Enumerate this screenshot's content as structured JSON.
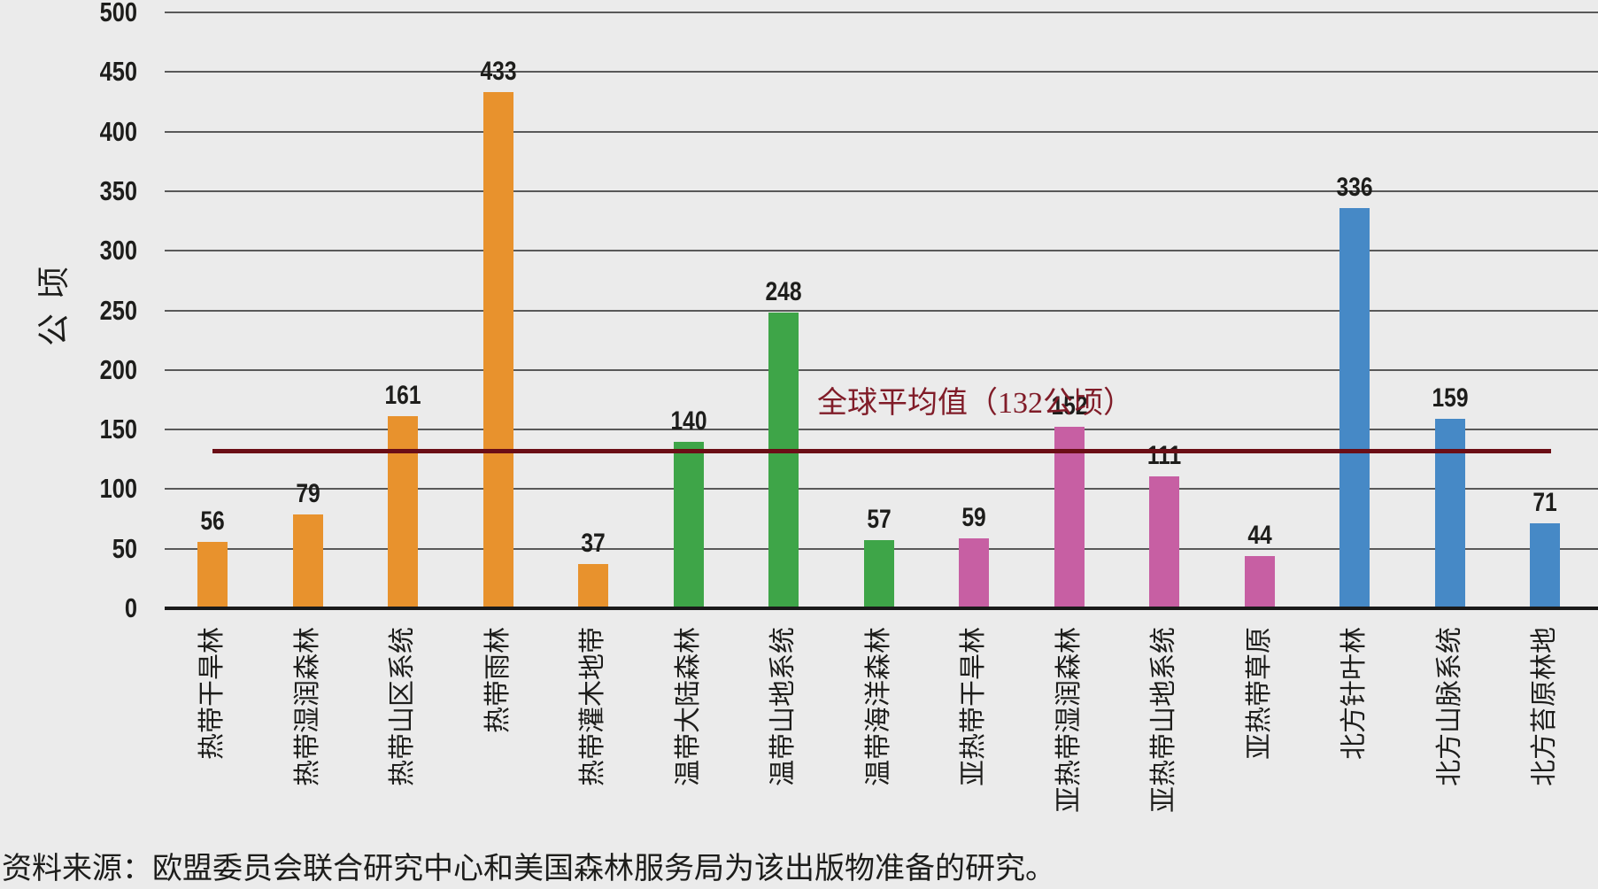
{
  "colors": {
    "background": "#EBEBEB",
    "gridline": "#595959",
    "axis_line": "#1A1A1A",
    "text": "#1D1D1B",
    "tropical_orange": "#E8922D",
    "temperate_green": "#3EA548",
    "subtropical_magenta": "#C75FA3",
    "boreal_blue": "#4689C6",
    "average_line": "#6B0E16",
    "average_label_text": "#801C28"
  },
  "chart_data": {
    "type": "bar",
    "title": "",
    "ylabel": "公顷",
    "xlabel": "",
    "ylim": [
      0,
      500
    ],
    "yticks": [
      0,
      50,
      100,
      150,
      200,
      250,
      300,
      350,
      400,
      450,
      500
    ],
    "grid": "horizontal gridlines on, light gray panel background",
    "legend": "none",
    "bars": [
      {
        "category": "热带干旱林",
        "value": 56,
        "color": "#E8922D"
      },
      {
        "category": "热带湿润森林",
        "value": 79,
        "color": "#E8922D"
      },
      {
        "category": "热带山区系统",
        "value": 161,
        "color": "#E8922D"
      },
      {
        "category": "热带雨林",
        "value": 433,
        "color": "#E8922D"
      },
      {
        "category": "热带灌木地带",
        "value": 37,
        "color": "#E8922D"
      },
      {
        "category": "温带大陆森林",
        "value": 140,
        "color": "#3EA548"
      },
      {
        "category": "温带山地系统",
        "value": 248,
        "color": "#3EA548"
      },
      {
        "category": "温带海洋森林",
        "value": 57,
        "color": "#3EA548"
      },
      {
        "category": "亚热带干旱林",
        "value": 59,
        "color": "#C75FA3"
      },
      {
        "category": "亚热带湿润森林",
        "value": 152,
        "color": "#C75FA3"
      },
      {
        "category": "亚热带山地系统",
        "value": 111,
        "color": "#C75FA3"
      },
      {
        "category": "亚热带草原",
        "value": 44,
        "color": "#C75FA3"
      },
      {
        "category": "北方针叶林",
        "value": 336,
        "color": "#4689C6"
      },
      {
        "category": "北方山脉系统",
        "value": 159,
        "color": "#4689C6"
      },
      {
        "category": "北方苔原林地",
        "value": 71,
        "color": "#4689C6"
      }
    ],
    "average_line": {
      "value": 132,
      "label": "全球平均值（132公顷）",
      "color": "#6B0E16"
    },
    "source_note": "资料来源：欧盟委员会联合研究中心和美国森林服务局为该出版物准备的研究。"
  }
}
